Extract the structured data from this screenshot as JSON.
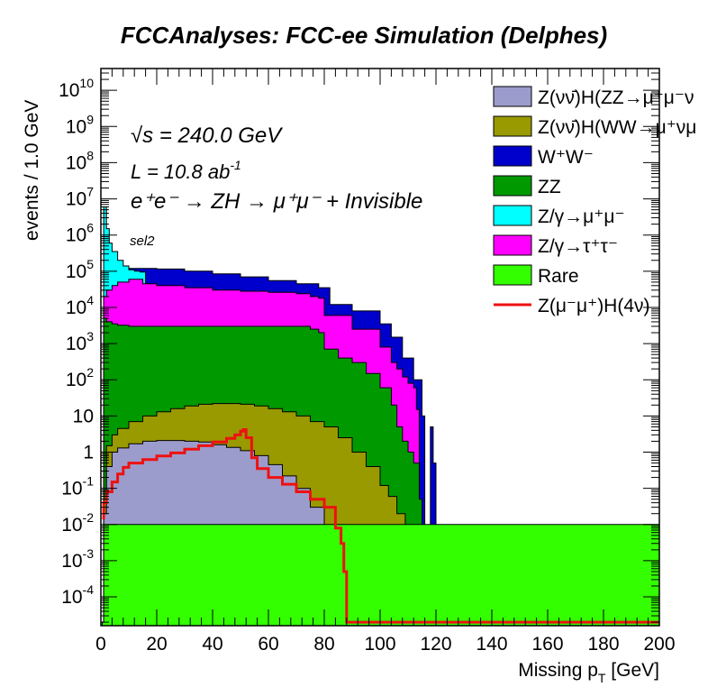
{
  "chart_data": {
    "type": "area",
    "title": "FCCAnalyses: FCC-ee Simulation (Delphes)",
    "xlabel": "Missing p",
    "xlabel_sub": "T",
    "xlabel_unit": " [GeV]",
    "ylabel": "events / 1.0 GeV",
    "xlim": [
      0,
      200
    ],
    "ylim": [
      1.6e-05,
      40000000000.0
    ],
    "yscale": "log",
    "grid": false,
    "legend_position": "top-right",
    "x_ticks": [
      "0",
      "20",
      "40",
      "60",
      "80",
      "100",
      "120",
      "140",
      "160",
      "180",
      "200"
    ],
    "annotations": {
      "sqrt_s_label": "√s = 240.0 GeV",
      "lumi_label": "L = 10.8 ab",
      "lumi_exp": "-1",
      "process_label": "e⁺e⁻ → ZH → μ⁺μ⁻ + Invisible",
      "selection_label": "sel2"
    },
    "stack_order": [
      "Rare",
      "Z/γ→τ⁺τ⁻",
      "Z/γ→μ⁺μ⁻",
      "ZZ",
      "W⁺W⁻",
      "Z(νν̄)H(WW→μ⁺νμ⁻ν)",
      "Z(νν̄)H(ZZ→μ⁺μ⁻νν)"
    ],
    "series": [
      {
        "name": "Z(νν̄)H(ZZ→μ⁺μ⁻νν)",
        "legend_label": "Z(νν̄)H(ZZ→μ⁺μ⁻ν",
        "color": "#9c9ccc",
        "kind": "fill",
        "points": [
          [
            0.5,
            2e-05
          ],
          [
            1,
            0.02
          ],
          [
            2,
            0.4
          ],
          [
            4,
            1.0
          ],
          [
            6,
            1.3
          ],
          [
            10,
            1.7
          ],
          [
            15,
            2.0
          ],
          [
            20,
            2.1
          ],
          [
            25,
            2.1
          ],
          [
            30,
            2.0
          ],
          [
            35,
            1.9
          ],
          [
            40,
            1.6
          ],
          [
            45,
            1.35
          ],
          [
            50,
            1.1
          ],
          [
            55,
            0.8
          ],
          [
            60,
            0.45
          ],
          [
            65,
            0.22
          ],
          [
            70,
            0.1
          ],
          [
            75,
            0.03
          ],
          [
            80,
            0.008
          ],
          [
            84,
            0.003
          ],
          [
            88,
            0.001
          ],
          [
            92,
            0.0006
          ],
          [
            96,
            0.0003
          ],
          [
            100,
            0.0001
          ],
          [
            103,
            2e-05
          ]
        ]
      },
      {
        "name": "Z(νν̄)H(WW→μ⁺νμ⁻ν)",
        "legend_label": "Z(νν̄)H(WW→μ⁺νμ",
        "color": "#999900",
        "kind": "fill",
        "points": [
          [
            0.5,
            2e-05
          ],
          [
            1,
            0.05
          ],
          [
            2,
            1.5
          ],
          [
            4,
            3
          ],
          [
            6,
            4.5
          ],
          [
            10,
            7
          ],
          [
            15,
            10
          ],
          [
            20,
            13
          ],
          [
            25,
            16
          ],
          [
            30,
            19
          ],
          [
            35,
            21
          ],
          [
            40,
            22
          ],
          [
            45,
            22
          ],
          [
            50,
            21
          ],
          [
            55,
            19
          ],
          [
            60,
            16
          ],
          [
            65,
            13
          ],
          [
            70,
            10
          ],
          [
            75,
            7
          ],
          [
            80,
            5
          ],
          [
            85,
            2.5
          ],
          [
            90,
            1
          ],
          [
            95,
            0.4
          ],
          [
            100,
            0.12
          ],
          [
            103,
            0.06
          ],
          [
            106,
            0.02
          ],
          [
            109,
            0.006
          ],
          [
            111,
            0.002
          ],
          [
            113,
            0.0005
          ],
          [
            115,
            2e-05
          ]
        ]
      },
      {
        "name": "W⁺W⁻",
        "legend_label": "W⁺W⁻",
        "color": "#0000cc",
        "kind": "fill",
        "points": [
          [
            0.5,
            2e-05
          ],
          [
            1,
            30000
          ],
          [
            2,
            60000
          ],
          [
            4,
            100000
          ],
          [
            6,
            115000
          ],
          [
            10,
            120000
          ],
          [
            15,
            120000
          ],
          [
            20,
            115000
          ],
          [
            30,
            100000
          ],
          [
            40,
            85000
          ],
          [
            50,
            70000
          ],
          [
            60,
            55000
          ],
          [
            70,
            45000
          ],
          [
            78,
            35000
          ],
          [
            82,
            12000
          ],
          [
            90,
            8000
          ],
          [
            100,
            3500
          ],
          [
            104,
            1500
          ],
          [
            108,
            400
          ],
          [
            112,
            100
          ],
          [
            115,
            10
          ],
          [
            116,
            2e-05
          ],
          [
            117,
            2e-05
          ],
          [
            118,
            5
          ],
          [
            119,
            0.5
          ],
          [
            120,
            2e-05
          ]
        ]
      },
      {
        "name": "ZZ",
        "legend_label": "ZZ",
        "color": "#009900",
        "kind": "fill",
        "points": [
          [
            0.5,
            2e-05
          ],
          [
            1,
            5000
          ],
          [
            2,
            4000
          ],
          [
            4,
            3500
          ],
          [
            6,
            3200
          ],
          [
            10,
            3000
          ],
          [
            20,
            3000
          ],
          [
            30,
            3000
          ],
          [
            40,
            3000
          ],
          [
            50,
            3000
          ],
          [
            60,
            3000
          ],
          [
            70,
            3000
          ],
          [
            75,
            2500
          ],
          [
            78,
            2000
          ],
          [
            80,
            700
          ],
          [
            85,
            400
          ],
          [
            90,
            300
          ],
          [
            95,
            150
          ],
          [
            100,
            60
          ],
          [
            104,
            20
          ],
          [
            106,
            5
          ],
          [
            108,
            2
          ],
          [
            110,
            1
          ],
          [
            112,
            0.5
          ],
          [
            114,
            0.05
          ],
          [
            115,
            2e-05
          ]
        ]
      },
      {
        "name": "Z/γ→μ⁺μ⁻",
        "legend_label": "Z/γ→μ⁺μ⁻",
        "color": "#00ffff",
        "kind": "fill",
        "points": [
          [
            0.5,
            2e-05
          ],
          [
            1,
            6000000
          ],
          [
            2,
            1500000
          ],
          [
            3,
            600000
          ],
          [
            4,
            350000
          ],
          [
            6,
            200000
          ],
          [
            8,
            140000
          ],
          [
            10,
            110000
          ],
          [
            12,
            100000
          ],
          [
            14,
            95000
          ],
          [
            16,
            92000
          ]
        ]
      },
      {
        "name": "Z/γ→τ⁺τ⁻",
        "legend_label": "Z/γ→τ⁺τ⁻",
        "color": "#ff00ff",
        "kind": "fill",
        "points": [
          [
            0.5,
            2e-05
          ],
          [
            1,
            20000
          ],
          [
            2,
            30000
          ],
          [
            4,
            40000
          ],
          [
            6,
            50000
          ],
          [
            10,
            60000
          ],
          [
            15,
            45000
          ],
          [
            20,
            40000
          ],
          [
            30,
            35000
          ],
          [
            40,
            30000
          ],
          [
            50,
            28000
          ],
          [
            60,
            26000
          ],
          [
            70,
            24000
          ],
          [
            75,
            20000
          ],
          [
            78,
            18000
          ],
          [
            80,
            6000
          ],
          [
            90,
            2500
          ],
          [
            100,
            800
          ],
          [
            104,
            300
          ],
          [
            106,
            200
          ],
          [
            108,
            120
          ],
          [
            110,
            80
          ],
          [
            112,
            60
          ],
          [
            113,
            15
          ],
          [
            114,
            2e-05
          ]
        ]
      },
      {
        "name": "Rare",
        "legend_label": "Rare",
        "color": "#33ff00",
        "kind": "fill",
        "points": [
          [
            0.5,
            2e-05
          ],
          [
            1,
            0.01
          ],
          [
            200,
            2e-05
          ]
        ]
      },
      {
        "name": "Z(μ⁻μ⁺)H(4ν)",
        "legend_label": "Z(μ⁻μ⁺)H(4ν)",
        "color": "#ee1111",
        "kind": "line",
        "points": [
          [
            0.5,
            0.015
          ],
          [
            1,
            0.04
          ],
          [
            2,
            0.08
          ],
          [
            4,
            0.15
          ],
          [
            6,
            0.25
          ],
          [
            8,
            0.38
          ],
          [
            10,
            0.5
          ],
          [
            15,
            0.62
          ],
          [
            20,
            0.78
          ],
          [
            25,
            0.95
          ],
          [
            30,
            1.2
          ],
          [
            35,
            1.5
          ],
          [
            40,
            1.9
          ],
          [
            45,
            2.4
          ],
          [
            48,
            3.0
          ],
          [
            50,
            3.8
          ],
          [
            51,
            4.2
          ],
          [
            52,
            2.5
          ],
          [
            54,
            0.7
          ],
          [
            56,
            0.35
          ],
          [
            60,
            0.2
          ],
          [
            65,
            0.13
          ],
          [
            70,
            0.08
          ],
          [
            75,
            0.05
          ],
          [
            80,
            0.03
          ],
          [
            84,
            0.008
          ],
          [
            86,
            0.003
          ],
          [
            87,
            0.0005
          ],
          [
            88,
            2e-05
          ],
          [
            200,
            2e-05
          ]
        ]
      }
    ]
  }
}
